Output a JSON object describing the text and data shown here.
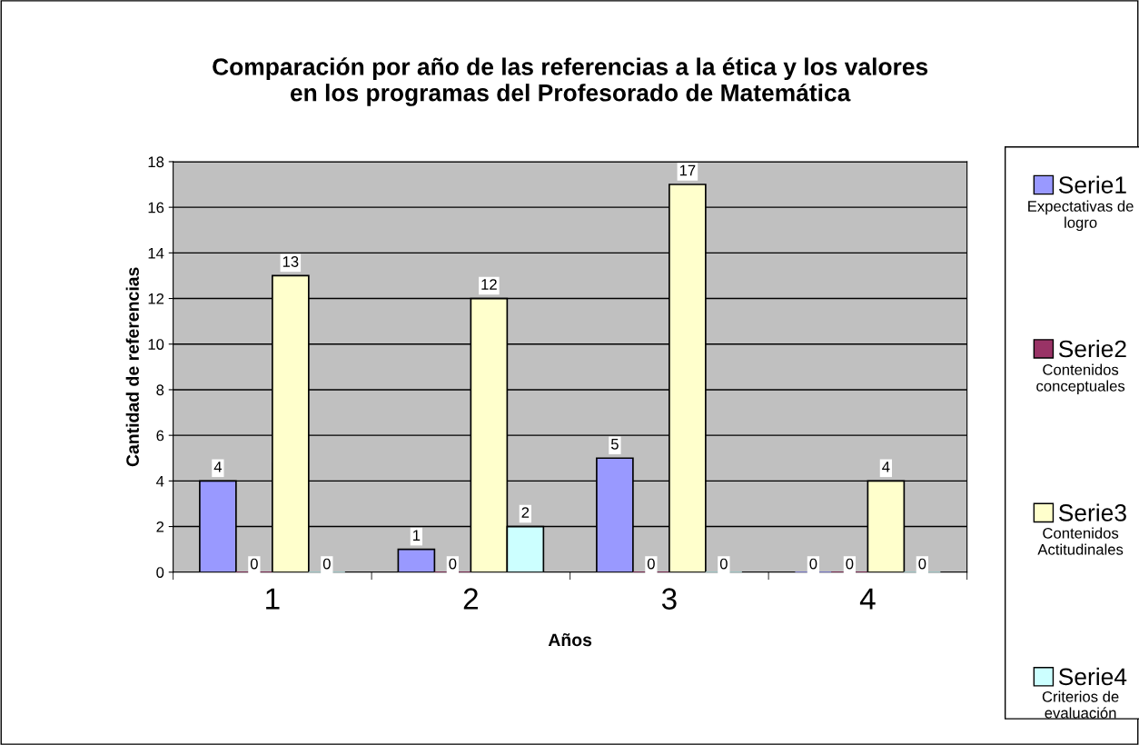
{
  "chart_data": {
    "type": "bar",
    "title": "Comparación por año de las referencias a la ética y los valores\nen los programas del Profesorado de Matemática",
    "xlabel": "Años",
    "ylabel": "Cantidad de referencias",
    "categories": [
      "1",
      "2",
      "3",
      "4"
    ],
    "series": [
      {
        "name": "Serie1",
        "color": "#9999ff",
        "values": [
          4,
          1,
          5,
          0
        ]
      },
      {
        "name": "Serie2",
        "color": "#993366",
        "values": [
          0,
          0,
          0,
          0
        ]
      },
      {
        "name": "Serie3",
        "color": "#ffffcc",
        "values": [
          13,
          12,
          17,
          4
        ]
      },
      {
        "name": "Serie4",
        "color": "#ccffff",
        "values": [
          0,
          2,
          0,
          0
        ]
      }
    ],
    "ylim": [
      0,
      18
    ],
    "yticks": [
      0,
      2,
      4,
      6,
      8,
      10,
      12,
      14,
      16,
      18
    ],
    "grid": "y",
    "legend": "right",
    "data_labels": true,
    "annotations": [
      "Expectativas de logro",
      "Contenidos conceptuales",
      "Contenidos Actitudinales",
      "Criterios de evaluación"
    ]
  }
}
